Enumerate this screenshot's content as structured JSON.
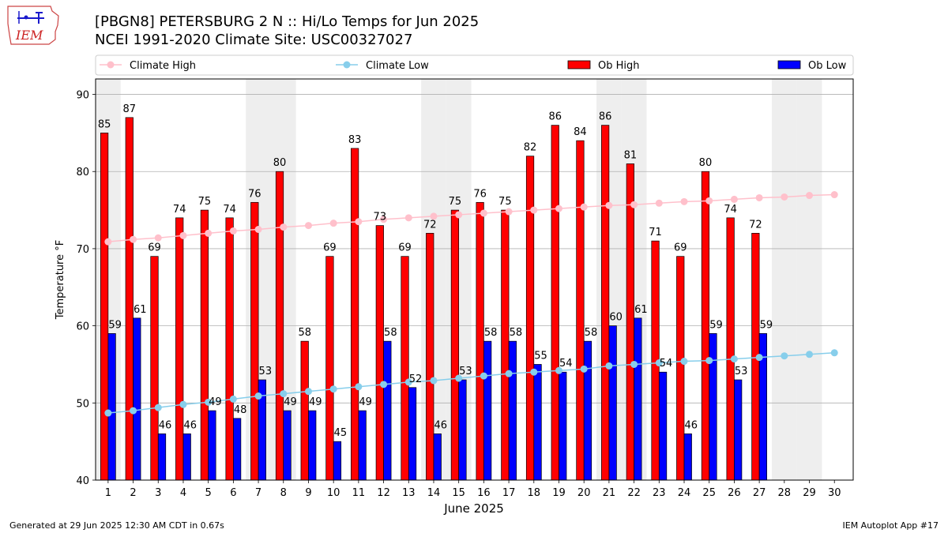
{
  "title_lines": [
    "[PBGN8] PETERSBURG 2 N :: Hi/Lo Temps for Jun 2025",
    "NCEI 1991-2020 Climate Site: USC00327027"
  ],
  "logo_text": "IEM",
  "footer_left": "Generated at 29 Jun 2025 12:30 AM CDT in 0.67s",
  "footer_right": "IEM Autoplot App #17",
  "colors": {
    "ob_high": "#ff0000",
    "ob_low": "#0000ff",
    "climate_high": "#ffc0cb",
    "climate_low": "#87ceeb",
    "weekend_shade": "#eeeeee",
    "grid": "#b0b0b0"
  },
  "chart_data": {
    "type": "bar",
    "xlabel": "June 2025",
    "ylabel": "Temperature °F",
    "ylim": [
      40,
      92
    ],
    "yticks": [
      40,
      50,
      60,
      70,
      80,
      90
    ],
    "grid": true,
    "legend_placement": "top",
    "categories": [
      1,
      2,
      3,
      4,
      5,
      6,
      7,
      8,
      9,
      10,
      11,
      12,
      13,
      14,
      15,
      16,
      17,
      18,
      19,
      20,
      21,
      22,
      23,
      24,
      25,
      26,
      27,
      28,
      29,
      30
    ],
    "shaded_days": [
      1,
      7,
      8,
      14,
      15,
      21,
      22,
      28,
      29
    ],
    "series": [
      {
        "name": "Ob High",
        "type": "bar",
        "values": [
          85,
          87,
          69,
          74,
          75,
          74,
          76,
          80,
          58,
          69,
          83,
          73,
          69,
          72,
          75,
          76,
          75,
          82,
          86,
          84,
          86,
          81,
          71,
          69,
          80,
          74,
          72,
          null,
          null,
          null
        ]
      },
      {
        "name": "Ob Low",
        "type": "bar",
        "values": [
          59,
          61,
          46,
          46,
          49,
          48,
          53,
          49,
          49,
          45,
          49,
          58,
          52,
          46,
          53,
          58,
          58,
          55,
          54,
          58,
          60,
          61,
          54,
          46,
          59,
          53,
          59,
          null,
          null,
          null
        ]
      },
      {
        "name": "Climate High",
        "type": "line",
        "values": [
          70.9,
          71.2,
          71.4,
          71.7,
          72.0,
          72.3,
          72.5,
          72.8,
          73.0,
          73.3,
          73.5,
          73.8,
          74.0,
          74.2,
          74.4,
          74.6,
          74.8,
          75.0,
          75.2,
          75.4,
          75.6,
          75.7,
          75.9,
          76.1,
          76.2,
          76.4,
          76.6,
          76.7,
          76.9,
          77.0
        ]
      },
      {
        "name": "Climate Low",
        "type": "line",
        "values": [
          48.7,
          49.0,
          49.4,
          49.8,
          50.1,
          50.5,
          50.9,
          51.2,
          51.5,
          51.8,
          52.1,
          52.4,
          52.7,
          52.9,
          53.2,
          53.5,
          53.8,
          54.0,
          54.2,
          54.4,
          54.8,
          55.0,
          55.2,
          55.4,
          55.5,
          55.7,
          55.9,
          56.1,
          56.3,
          56.5
        ]
      }
    ]
  }
}
